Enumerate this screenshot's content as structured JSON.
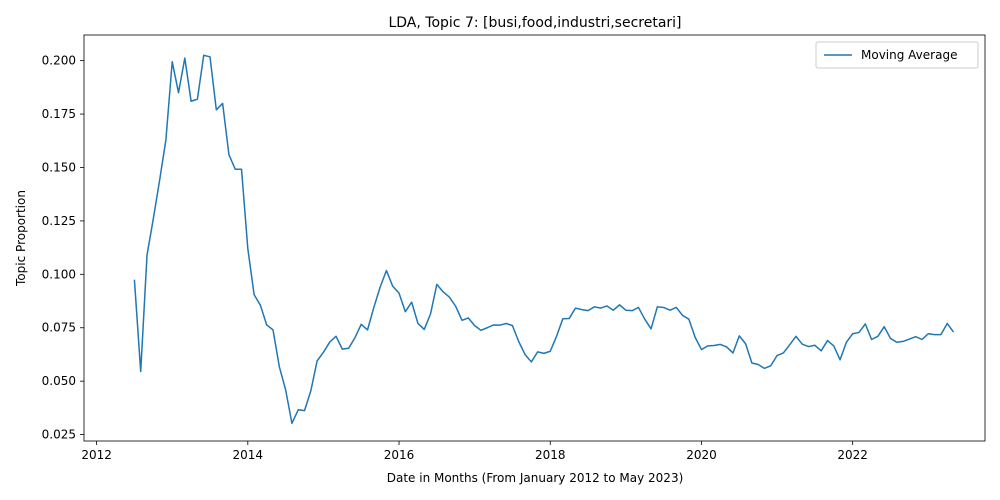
{
  "chart_data": {
    "type": "line",
    "title": "LDA, Topic 7: [busi,food,industri,secretari]",
    "xlabel": "Date in Months (From January 2012 to May 2023)",
    "ylabel": "Topic Proportion",
    "xlim": [
      "2011-11",
      "2023-10"
    ],
    "ylim": [
      0.022,
      0.212
    ],
    "x_ticks": [
      "2012",
      "2014",
      "2016",
      "2018",
      "2020",
      "2022"
    ],
    "y_ticks": [
      "0.025",
      "0.050",
      "0.075",
      "0.100",
      "0.125",
      "0.150",
      "0.175",
      "0.200"
    ],
    "grid": false,
    "legend_position": "top-right",
    "series_color": "#1f77b4",
    "series": [
      {
        "name": "Moving Average",
        "x": [
          "2012-07",
          "2012-08",
          "2012-09",
          "2012-10",
          "2012-11",
          "2012-12",
          "2013-01",
          "2013-02",
          "2013-03",
          "2013-04",
          "2013-05",
          "2013-06",
          "2013-07",
          "2013-08",
          "2013-09",
          "2013-10",
          "2013-11",
          "2013-12",
          "2014-01",
          "2014-02",
          "2014-03",
          "2014-04",
          "2014-05",
          "2014-06",
          "2014-07",
          "2014-08",
          "2014-09",
          "2014-10",
          "2014-11",
          "2014-12",
          "2015-01",
          "2015-02",
          "2015-03",
          "2015-04",
          "2015-05",
          "2015-06",
          "2015-07",
          "2015-08",
          "2015-09",
          "2015-10",
          "2015-11",
          "2015-12",
          "2016-01",
          "2016-02",
          "2016-03",
          "2016-04",
          "2016-05",
          "2016-06",
          "2016-07",
          "2016-08",
          "2016-09",
          "2016-10",
          "2016-11",
          "2016-12",
          "2017-01",
          "2017-02",
          "2017-03",
          "2017-04",
          "2017-05",
          "2017-06",
          "2017-07",
          "2017-08",
          "2017-09",
          "2017-10",
          "2017-11",
          "2017-12",
          "2018-01",
          "2018-02",
          "2018-03",
          "2018-04",
          "2018-05",
          "2018-06",
          "2018-07",
          "2018-08",
          "2018-09",
          "2018-10",
          "2018-11",
          "2018-12",
          "2019-01",
          "2019-02",
          "2019-03",
          "2019-04",
          "2019-05",
          "2019-06",
          "2019-07",
          "2019-08",
          "2019-09",
          "2019-10",
          "2019-11",
          "2019-12",
          "2020-01",
          "2020-02",
          "2020-03",
          "2020-04",
          "2020-05",
          "2020-06",
          "2020-07",
          "2020-08",
          "2020-09",
          "2020-10",
          "2020-11",
          "2020-12",
          "2021-01",
          "2021-02",
          "2021-03",
          "2021-04",
          "2021-05",
          "2021-06",
          "2021-07",
          "2021-08",
          "2021-09",
          "2021-10",
          "2021-11",
          "2021-12",
          "2022-01",
          "2022-02",
          "2022-03",
          "2022-04",
          "2022-05",
          "2022-06",
          "2022-07",
          "2022-08",
          "2022-09",
          "2022-10",
          "2022-11",
          "2022-12",
          "2023-01",
          "2023-02",
          "2023-03",
          "2023-04",
          "2023-05"
        ],
        "values": [
          0.0975,
          0.0545,
          0.109,
          0.126,
          0.144,
          0.163,
          0.1995,
          0.185,
          0.2012,
          0.181,
          0.182,
          0.2025,
          0.2018,
          0.177,
          0.18,
          0.156,
          0.1492,
          0.1492,
          0.112,
          0.0905,
          0.0855,
          0.0763,
          0.074,
          0.0568,
          0.046,
          0.0303,
          0.0366,
          0.0362,
          0.0455,
          0.0595,
          0.0635,
          0.0683,
          0.071,
          0.065,
          0.0654,
          0.0703,
          0.0766,
          0.074,
          0.0845,
          0.094,
          0.1018,
          0.0944,
          0.0912,
          0.0825,
          0.087,
          0.077,
          0.0742,
          0.0815,
          0.0953,
          0.0918,
          0.0893,
          0.085,
          0.0785,
          0.0796,
          0.076,
          0.0738,
          0.075,
          0.0763,
          0.0762,
          0.077,
          0.076,
          0.0685,
          0.0625,
          0.059,
          0.0637,
          0.063,
          0.064,
          0.071,
          0.0792,
          0.0793,
          0.0842,
          0.0835,
          0.083,
          0.0848,
          0.0842,
          0.0852,
          0.0832,
          0.0857,
          0.0832,
          0.083,
          0.0845,
          0.079,
          0.0745,
          0.0848,
          0.0845,
          0.0832,
          0.0845,
          0.0808,
          0.079,
          0.0705,
          0.0648,
          0.0665,
          0.0667,
          0.0672,
          0.066,
          0.0632,
          0.0712,
          0.0675,
          0.0585,
          0.0578,
          0.056,
          0.0572,
          0.062,
          0.0632,
          0.067,
          0.071,
          0.0673,
          0.0662,
          0.0668,
          0.0642,
          0.069,
          0.0665,
          0.06,
          0.0682,
          0.0722,
          0.0728,
          0.0768,
          0.0695,
          0.071,
          0.0755,
          0.07,
          0.0682,
          0.0686,
          0.0697,
          0.0708,
          0.0695,
          0.0722,
          0.0718,
          0.0718,
          0.077,
          0.073
        ]
      }
    ]
  }
}
